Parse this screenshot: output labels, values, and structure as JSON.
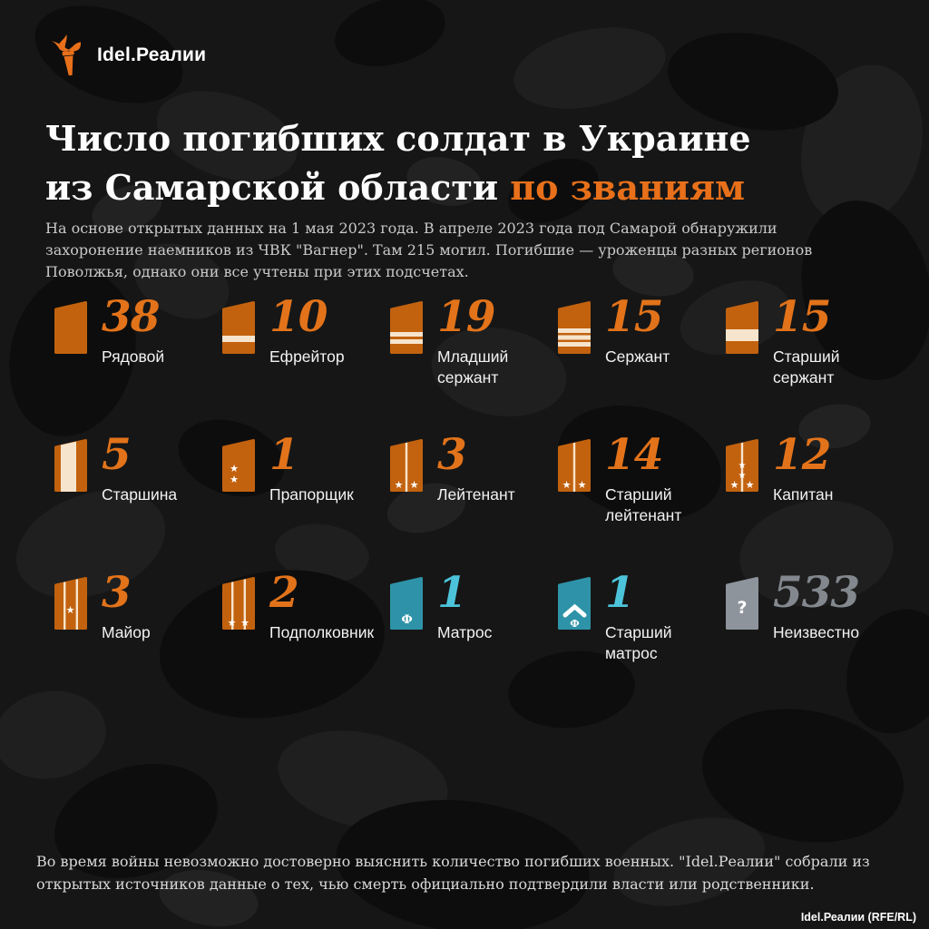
{
  "brand": {
    "logo_text": "Idel.Реалии"
  },
  "title": {
    "line1": "Число погибших солдат в Украине",
    "line2_white": "из Самарской области ",
    "line2_orange": "по званиям"
  },
  "subtitle": {
    "text": "На основе открытых данных на 1 мая 2023 года. В апреле 2023 года под Самарой обнаружили захоронение наемников из ЧВК \"Вагнер\". Там 215 могил. Погибшие — уроженцы разных регионов Поволжья, однако они все учтены при этих подсчетах."
  },
  "footer": {
    "text": "Во время войны невозможно достоверно выяснить количество погибших военных. \"Idel.Реалии\" собрали из открытых источников данные о тех, чью смерть официально подтвердили власти или родственники.",
    "credit": "Idel.Реалии (RFE/RL)"
  },
  "colors": {
    "accent": "#e8701a",
    "board_orange": "#c2620f",
    "board_teal": "#2e93a8",
    "board_gray": "#8e949c",
    "stripe_cream": "#f7e4cc",
    "number_orange": "#e2731a",
    "number_teal": "#4cc3da",
    "number_gray": "#83888e"
  },
  "ranks": [
    {
      "label": "Рядовой",
      "value": 38,
      "insignia": "plain",
      "theme": "orange"
    },
    {
      "label": "Ефрейтор",
      "value": 10,
      "insignia": "stripe1",
      "theme": "orange"
    },
    {
      "label": "Младший сержант",
      "value": 19,
      "insignia": "stripe2",
      "theme": "orange"
    },
    {
      "label": "Сержант",
      "value": 15,
      "insignia": "stripe3",
      "theme": "orange"
    },
    {
      "label": "Старший сержант",
      "value": 15,
      "insignia": "wide-stripe",
      "theme": "orange"
    },
    {
      "label": "Старшина",
      "value": 5,
      "insignia": "vertical-wide",
      "theme": "orange"
    },
    {
      "label": "Прапорщик",
      "value": 1,
      "insignia": "two-stars",
      "theme": "orange"
    },
    {
      "label": "Лейтенант",
      "value": 3,
      "insignia": "stripe-two-stars",
      "theme": "orange"
    },
    {
      "label": "Старший лейтенант",
      "value": 14,
      "insignia": "stripe-two-stars",
      "theme": "orange"
    },
    {
      "label": "Капитан",
      "value": 12,
      "insignia": "stripe-four-stars",
      "theme": "orange"
    },
    {
      "label": "Майор",
      "value": 3,
      "insignia": "two-stripes-one-star",
      "theme": "orange"
    },
    {
      "label": "Подполковник",
      "value": 2,
      "insignia": "two-stripes-two-stars",
      "theme": "orange"
    },
    {
      "label": "Матрос",
      "value": 1,
      "insignia": "navy-f",
      "theme": "teal"
    },
    {
      "label": "Старший матрос",
      "value": 1,
      "insignia": "navy-chevron-f",
      "theme": "teal"
    },
    {
      "label": "Неизвестно",
      "value": 533,
      "insignia": "question",
      "theme": "gray"
    }
  ],
  "chart_data": {
    "type": "pictogram",
    "title": "Число погибших солдат в Украине из Самарской области по званиям",
    "subtitle": "На основе открытых данных на 1 мая 2023 года",
    "categories": [
      "Рядовой",
      "Ефрейтор",
      "Младший сержант",
      "Сержант",
      "Старший сержант",
      "Старшина",
      "Прапорщик",
      "Лейтенант",
      "Старший лейтенант",
      "Капитан",
      "Майор",
      "Подполковник",
      "Матрос",
      "Старший матрос",
      "Неизвестно"
    ],
    "values": [
      38,
      10,
      19,
      15,
      15,
      5,
      1,
      3,
      14,
      12,
      3,
      2,
      1,
      1,
      533
    ],
    "legend_position": "none",
    "grid": false
  }
}
